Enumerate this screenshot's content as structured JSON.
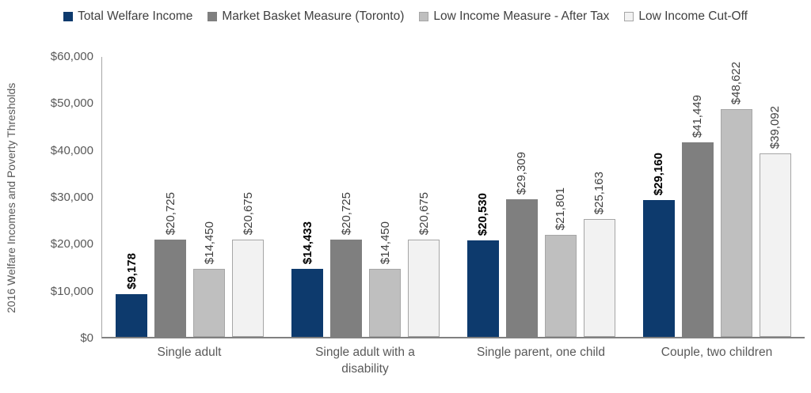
{
  "y_axis": {
    "title": "2016 Welfare Incomes and Poverty Thresholds",
    "tick_labels": [
      "$0",
      "$10,000",
      "$20,000",
      "$30,000",
      "$40,000",
      "$50,000",
      "$60,000"
    ]
  },
  "chart_data": {
    "type": "bar",
    "title": "",
    "categories": [
      "Single adult",
      "Single adult with a disability",
      "Single parent, one child",
      "Couple, two children"
    ],
    "series": [
      {
        "name": "Total Welfare Income",
        "color": "#0d3a6d",
        "border": "",
        "label_bold": true,
        "values": [
          9178,
          14433,
          20530,
          29160
        ],
        "labels": [
          "$9,178",
          "$14,433",
          "$20,530",
          "$29,160"
        ]
      },
      {
        "name": "Market Basket Measure (Toronto)",
        "color": "#7f7f7f",
        "border": "",
        "label_bold": false,
        "values": [
          20725,
          20725,
          29309,
          41449
        ],
        "labels": [
          "$20,725",
          "$20,725",
          "$29,309",
          "$41,449"
        ]
      },
      {
        "name": "Low Income Measure - After Tax",
        "color": "#bfbfbf",
        "border": "#a6a6a6",
        "label_bold": false,
        "values": [
          14450,
          14450,
          21801,
          48622
        ],
        "labels": [
          "$14,450",
          "$14,450",
          "$21,801",
          "$48,622"
        ]
      },
      {
        "name": "Low Income Cut-Off",
        "color": "#f2f2f2",
        "border": "#a6a6a6",
        "label_bold": false,
        "values": [
          20675,
          20675,
          25163,
          39092
        ],
        "labels": [
          "$20,675",
          "$20,675",
          "$25,163",
          "$39,092"
        ]
      }
    ],
    "ylabel": "2016 Welfare Incomes and Poverty Thresholds",
    "ylim": [
      0,
      60000
    ],
    "y_tick_step": 10000,
    "grid": false,
    "legend_position": "top",
    "value_label_rotation": 270,
    "axis_color": "#808080",
    "text_color": "#595959",
    "value_label_color": "#404040"
  }
}
